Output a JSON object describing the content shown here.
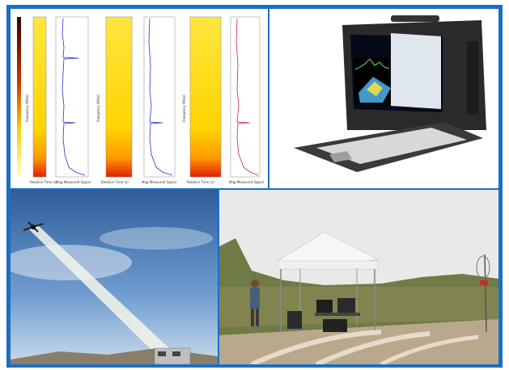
{
  "panels": {
    "spectrogram_plots": {
      "freq_axis_label": "Frequency [MHz]",
      "time_axis_label": "Relative Time (s)",
      "signal_axis_label": "Mag Measured Signal"
    },
    "rugged_laptop": {},
    "drone_beam": {},
    "field_tent": {}
  },
  "colors": {
    "frame": "#1a6fc4"
  }
}
